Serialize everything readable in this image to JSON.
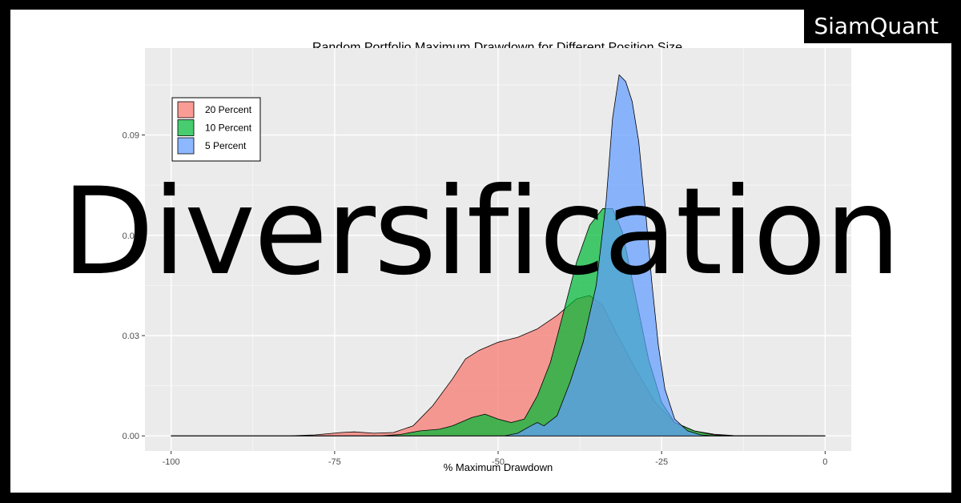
{
  "brand": {
    "label": "SiamQuant"
  },
  "overlay": {
    "title": "Diversification"
  },
  "chart_data": {
    "type": "area",
    "title": "Random Portfolio Maximum Drawdown for Different Position Size",
    "xlabel": "% Maximum Drawdown",
    "ylabel": "",
    "xlim": [
      -104,
      4
    ],
    "ylim": [
      -0.0045,
      0.116
    ],
    "x_ticks": [
      -100,
      -75,
      -50,
      -25,
      0
    ],
    "x_tick_labels": [
      "-100",
      "-75",
      "-50",
      "-25",
      "0"
    ],
    "y_ticks": [
      0.0,
      0.03,
      0.06,
      0.09
    ],
    "y_tick_labels": [
      "0.00",
      "0.03",
      "0.06",
      "0.09"
    ],
    "grid": true,
    "legend_position": "top-left",
    "series": [
      {
        "name": "20 Percent",
        "color": "#F8766D",
        "points": [
          [
            -100,
            0
          ],
          [
            -82,
            0
          ],
          [
            -78,
            0.0003
          ],
          [
            -74,
            0.001
          ],
          [
            -72,
            0.0012
          ],
          [
            -69,
            0.0008
          ],
          [
            -66,
            0.001
          ],
          [
            -63,
            0.003
          ],
          [
            -60,
            0.009
          ],
          [
            -57,
            0.017
          ],
          [
            -55,
            0.023
          ],
          [
            -53,
            0.0255
          ],
          [
            -50,
            0.028
          ],
          [
            -47,
            0.0295
          ],
          [
            -44,
            0.032
          ],
          [
            -41,
            0.036
          ],
          [
            -38,
            0.041
          ],
          [
            -36,
            0.042
          ],
          [
            -34,
            0.039
          ],
          [
            -32,
            0.031
          ],
          [
            -29,
            0.02
          ],
          [
            -26,
            0.01
          ],
          [
            -23,
            0.004
          ],
          [
            -20,
            0.0015
          ],
          [
            -17,
            0.0005
          ],
          [
            -14,
            0.0001
          ],
          [
            0,
            0
          ]
        ]
      },
      {
        "name": "10 Percent",
        "color": "#00BA38",
        "points": [
          [
            -100,
            0
          ],
          [
            -68,
            0
          ],
          [
            -65,
            0.0004
          ],
          [
            -62,
            0.0015
          ],
          [
            -59,
            0.002
          ],
          [
            -57,
            0.003
          ],
          [
            -54,
            0.0055
          ],
          [
            -52,
            0.0065
          ],
          [
            -50,
            0.005
          ],
          [
            -48,
            0.004
          ],
          [
            -46,
            0.005
          ],
          [
            -44,
            0.012
          ],
          [
            -42,
            0.022
          ],
          [
            -40,
            0.037
          ],
          [
            -38,
            0.052
          ],
          [
            -36,
            0.063
          ],
          [
            -34,
            0.068
          ],
          [
            -32.5,
            0.068
          ],
          [
            -31,
            0.061
          ],
          [
            -29,
            0.042
          ],
          [
            -27,
            0.023
          ],
          [
            -25,
            0.01
          ],
          [
            -23,
            0.004
          ],
          [
            -20,
            0.0015
          ],
          [
            -17,
            0.0003
          ],
          [
            -14,
            0
          ],
          [
            0,
            0
          ]
        ]
      },
      {
        "name": "5 Percent",
        "color": "#619CFF",
        "points": [
          [
            -100,
            0
          ],
          [
            -49,
            0
          ],
          [
            -47,
            0.0008
          ],
          [
            -45,
            0.003
          ],
          [
            -44,
            0.004
          ],
          [
            -43,
            0.003
          ],
          [
            -41,
            0.006
          ],
          [
            -39,
            0.016
          ],
          [
            -37,
            0.028
          ],
          [
            -35,
            0.045
          ],
          [
            -33.5,
            0.07
          ],
          [
            -32.5,
            0.095
          ],
          [
            -31.5,
            0.108
          ],
          [
            -30.5,
            0.106
          ],
          [
            -29.5,
            0.1
          ],
          [
            -28.5,
            0.088
          ],
          [
            -27.5,
            0.068
          ],
          [
            -26.5,
            0.046
          ],
          [
            -25.5,
            0.027
          ],
          [
            -24.5,
            0.014
          ],
          [
            -23,
            0.005
          ],
          [
            -21,
            0.0015
          ],
          [
            -19,
            0.0003
          ],
          [
            -17,
            0
          ],
          [
            0,
            0
          ]
        ]
      }
    ]
  }
}
